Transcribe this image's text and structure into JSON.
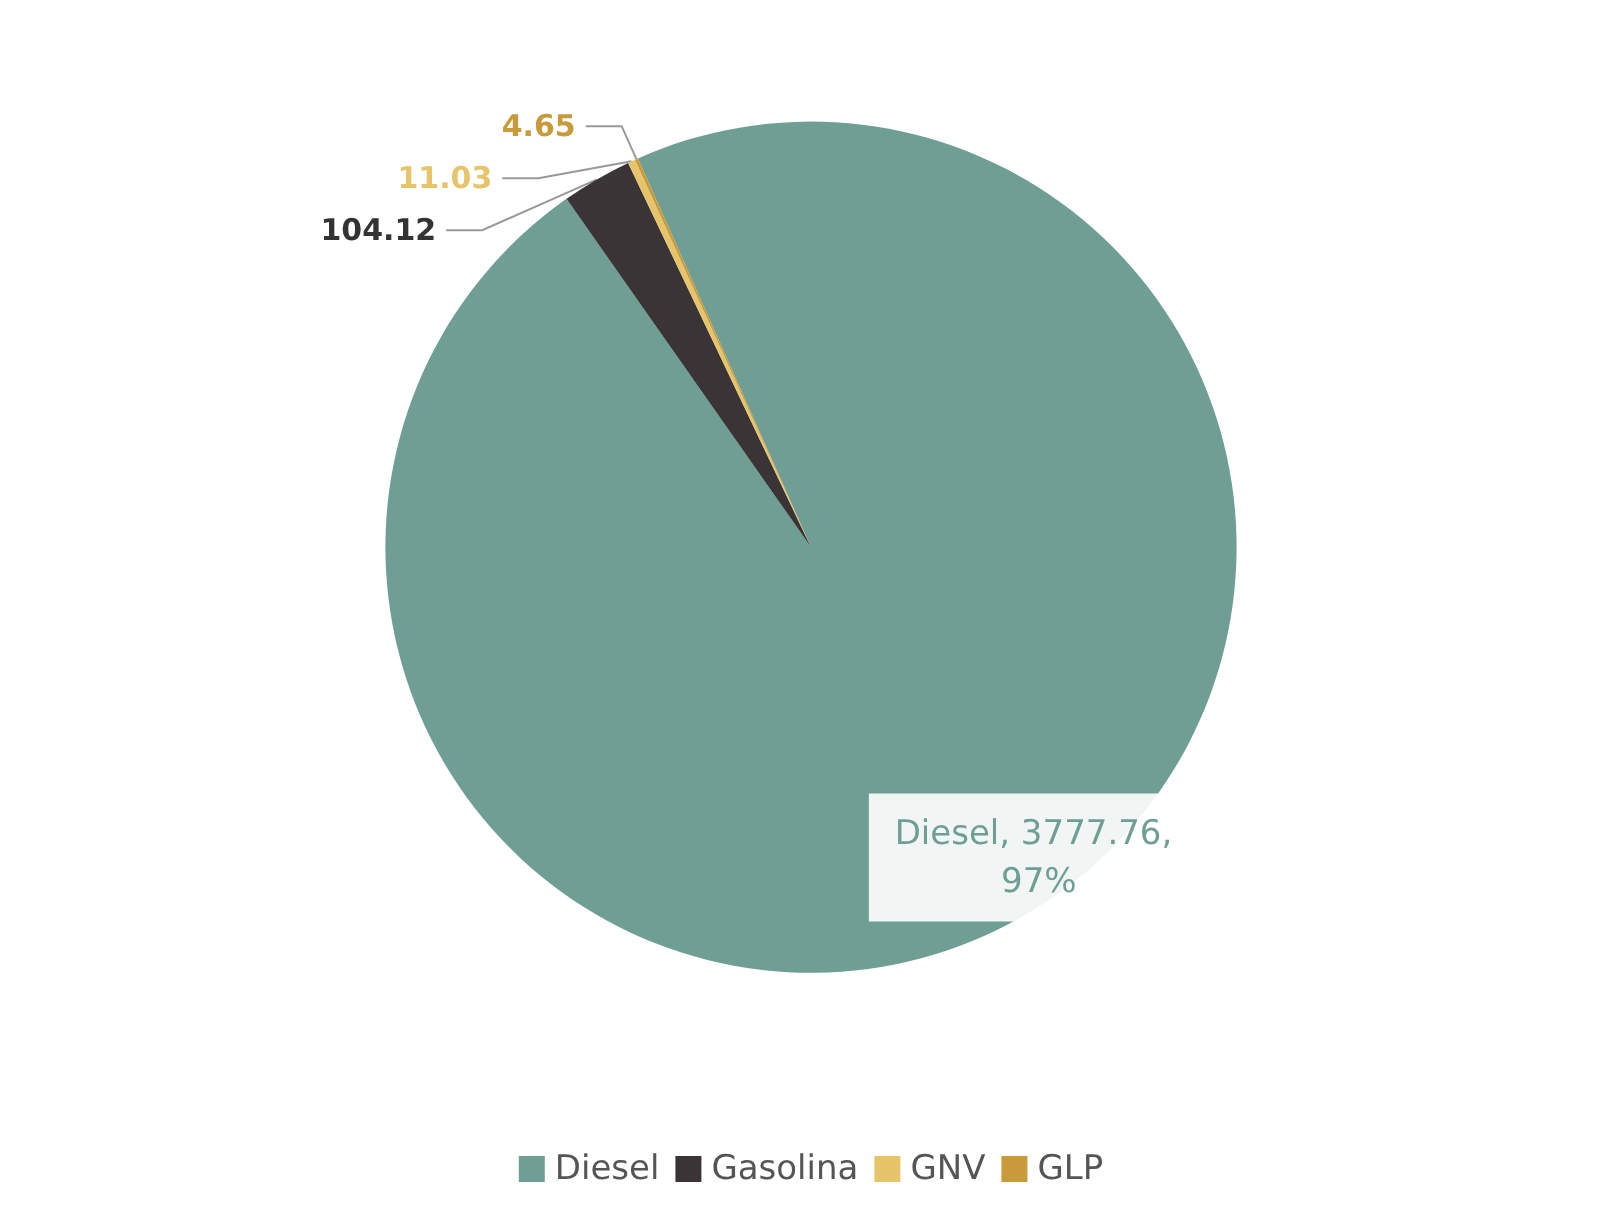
{
  "chart_data": {
    "type": "pie",
    "categories": [
      "Diesel",
      "Gasolina",
      "GNV",
      "GLP"
    ],
    "values": [
      3777.76,
      104.12,
      11.03,
      4.65
    ],
    "colors": [
      "#6e9e94",
      "#3b3436",
      "#e6c46a",
      "#c89a3a"
    ],
    "value_labels": [
      "Diesel, 3777.76, 97%",
      "104.12",
      "11.03",
      "4.65"
    ],
    "legend": "bottom"
  }
}
